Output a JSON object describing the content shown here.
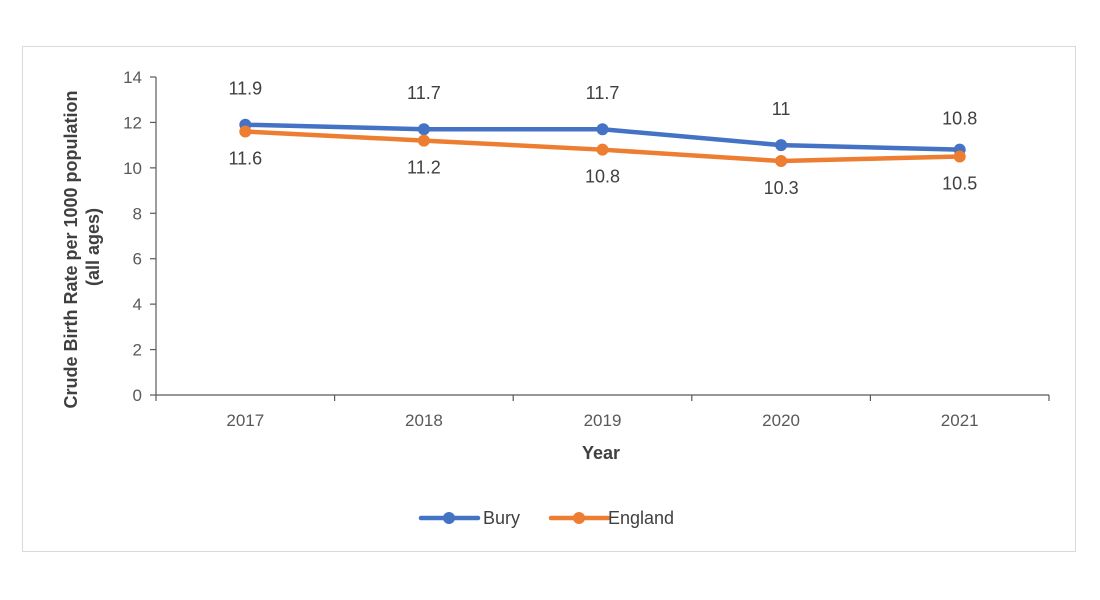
{
  "chart_data": {
    "type": "line",
    "title": "",
    "categories": [
      "2017",
      "2018",
      "2019",
      "2020",
      "2021"
    ],
    "xlabel": "Year",
    "ylabel_lines": [
      "Crude Birth Rate per 1000 population",
      "(all ages)"
    ],
    "ylim": [
      0,
      14
    ],
    "yticks": [
      "0",
      "2",
      "4",
      "6",
      "8",
      "10",
      "12",
      "14"
    ],
    "grid": false,
    "legend_position": "bottom",
    "series": [
      {
        "name": "Bury",
        "color": "#4472c4",
        "values": [
          11.9,
          11.7,
          11.7,
          11,
          10.8
        ],
        "labels": [
          "11.9",
          "11.7",
          "11.7",
          "11",
          "10.8"
        ]
      },
      {
        "name": "England",
        "color": "#ed7d31",
        "values": [
          11.6,
          11.2,
          10.8,
          10.3,
          10.5
        ],
        "labels": [
          "11.6",
          "11.2",
          "10.8",
          "10.3",
          "10.5"
        ]
      }
    ]
  }
}
